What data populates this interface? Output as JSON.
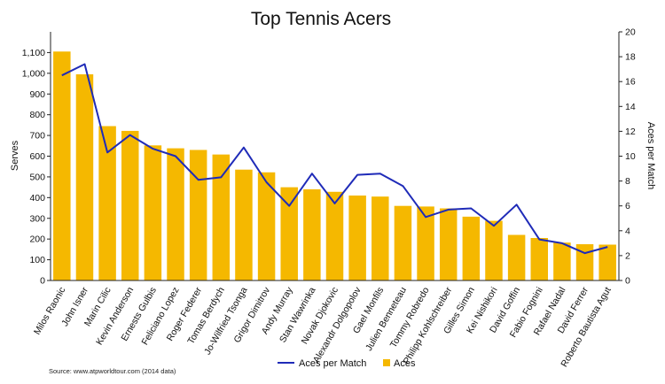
{
  "chart_data": {
    "type": "bar",
    "title": "Top Tennis Acers",
    "ylabel": "Serves",
    "y2label": "Aces per Match",
    "ylim": [
      0,
      1200
    ],
    "y2lim": [
      0,
      20
    ],
    "yticks": [
      "0",
      "100",
      "200",
      "300",
      "400",
      "500",
      "600",
      "700",
      "800",
      "900",
      "1,000",
      "1,100"
    ],
    "y2ticks": [
      "0",
      "2",
      "4",
      "6",
      "8",
      "10",
      "12",
      "14",
      "16",
      "18",
      "20"
    ],
    "categories": [
      "Milos Raonic",
      "John Isner",
      "Marin Cilic",
      "Kevin Anderson",
      "Ernests Gulbis",
      "Feliciano Lopez",
      "Roger Federer",
      "Tomas Berdych",
      "Jo-Wilfried Tsonga",
      "Grigor Dimitrov",
      "Andy Murray",
      "Stan Wawrinka",
      "Novak Djokovic",
      "Alexandr Dolgopolov",
      "Gael Monfils",
      "Julien Benneteau",
      "Tommy Robredo",
      "Philipp Kohlschreiber",
      "Gilles Simon",
      "Kei Nishikori",
      "David Goffin",
      "Fabio Fognini",
      "Rafael Nadal",
      "David Ferrer",
      "Roberto Bautista Agut"
    ],
    "series": [
      {
        "name": "Aces",
        "type": "bar",
        "axis": "left",
        "color": "#F5B800",
        "values": [
          1105,
          995,
          745,
          722,
          652,
          638,
          630,
          608,
          535,
          522,
          450,
          440,
          428,
          410,
          405,
          360,
          357,
          348,
          308,
          288,
          220,
          205,
          183,
          175,
          173
        ]
      },
      {
        "name": "Aces per Match",
        "type": "line",
        "axis": "right",
        "color": "#1F2BB8",
        "values": [
          16.5,
          17.4,
          10.3,
          11.7,
          10.6,
          10.0,
          8.1,
          8.3,
          10.7,
          7.9,
          6.0,
          8.6,
          6.2,
          8.5,
          8.6,
          7.6,
          5.1,
          5.7,
          5.8,
          4.4,
          6.1,
          3.3,
          3.0,
          2.2,
          2.7
        ]
      }
    ],
    "legend": {
      "position": "bottom",
      "entries": [
        "Aces per Match",
        "Aces"
      ]
    },
    "grid": false,
    "source": "Source: www.atpworldtour.com (2014 data)"
  }
}
